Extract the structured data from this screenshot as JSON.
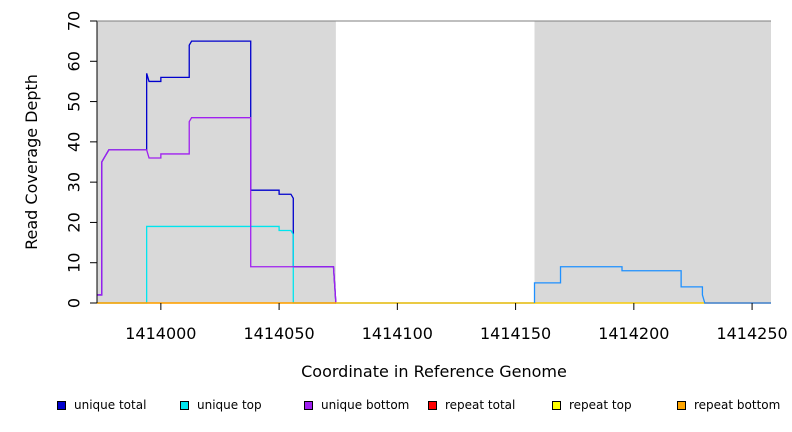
{
  "chart_data": {
    "type": "line",
    "title": "",
    "xlabel": "Coordinate in Reference Genome",
    "ylabel": "Read Coverage Depth",
    "xlim": [
      1413973,
      1414258
    ],
    "ylim": [
      0,
      70
    ],
    "xticks": [
      1414000,
      1414050,
      1414100,
      1414150,
      1414200,
      1414250
    ],
    "xtick_labels": [
      "1414000",
      "1414050",
      "1414100",
      "1414150",
      "1414200",
      "1414250"
    ],
    "yticks": [
      0,
      10,
      20,
      30,
      40,
      50,
      60,
      70
    ],
    "ytick_labels": [
      "0",
      "10",
      "20",
      "30",
      "40",
      "50",
      "60",
      "70"
    ],
    "grid": false,
    "background": "#d9d9d9",
    "highlight_regions": [
      {
        "x": [
          1413973,
          1414074
        ],
        "color": "#d9d9d9"
      },
      {
        "x": [
          1414158,
          1414258
        ],
        "color": "#d9d9d9"
      }
    ],
    "legend_position": "bottom",
    "series": [
      {
        "name": "unique total",
        "color": "#0000cd",
        "x": [
          1413973,
          1413975,
          1413975,
          1413976,
          1413977,
          1413978,
          1413979,
          1413994,
          1413994,
          1413995,
          1414000,
          1414000,
          1414012,
          1414012,
          1414013,
          1414038,
          1414038,
          1414050,
          1414050,
          1414055,
          1414056,
          1414056,
          1414073,
          1414074,
          1414158
        ],
        "y": [
          2,
          2,
          35,
          36,
          37,
          38,
          38,
          38,
          57,
          55,
          55,
          56,
          56,
          64,
          65,
          65,
          28,
          28,
          27,
          27,
          26,
          9,
          9,
          0,
          0
        ]
      },
      {
        "name": "unique top",
        "color": "#00e5ee",
        "x": [
          1413973,
          1413994,
          1413994,
          1414050,
          1414050,
          1414055,
          1414056,
          1414056,
          1414074
        ],
        "y": [
          0,
          0,
          19,
          19,
          18,
          18,
          17,
          0,
          0
        ]
      },
      {
        "name": "unique bottom",
        "color": "#a020f0",
        "x": [
          1413973,
          1413975,
          1413975,
          1413976,
          1413977,
          1413978,
          1413979,
          1413994,
          1413995,
          1414000,
          1414000,
          1414012,
          1414012,
          1414013,
          1414038,
          1414038,
          1414073,
          1414074,
          1414258
        ],
        "y": [
          2,
          2,
          35,
          36,
          37,
          38,
          38,
          38,
          36,
          36,
          37,
          37,
          45,
          46,
          46,
          9,
          9,
          0,
          0
        ]
      },
      {
        "name": "repeat total",
        "color": "#ff0000",
        "x": [
          1413973,
          1414258
        ],
        "y": [
          0,
          0
        ]
      },
      {
        "name": "repeat top",
        "color": "#ffff00",
        "x": [
          1413973,
          1414258
        ],
        "y": [
          0,
          0
        ]
      },
      {
        "name": "repeat bottom",
        "color": "#ffa500",
        "x": [
          1413973,
          1414074
        ],
        "y": [
          0,
          0
        ]
      },
      {
        "name": "",
        "color": "#1e90ff",
        "x": [
          1414158,
          1414158,
          1414169,
          1414169,
          1414195,
          1414195,
          1414220,
          1414220,
          1414229,
          1414229,
          1414230,
          1414258
        ],
        "y": [
          0,
          5,
          5,
          9,
          9,
          8,
          8,
          4,
          4,
          2,
          0,
          0
        ]
      }
    ]
  }
}
